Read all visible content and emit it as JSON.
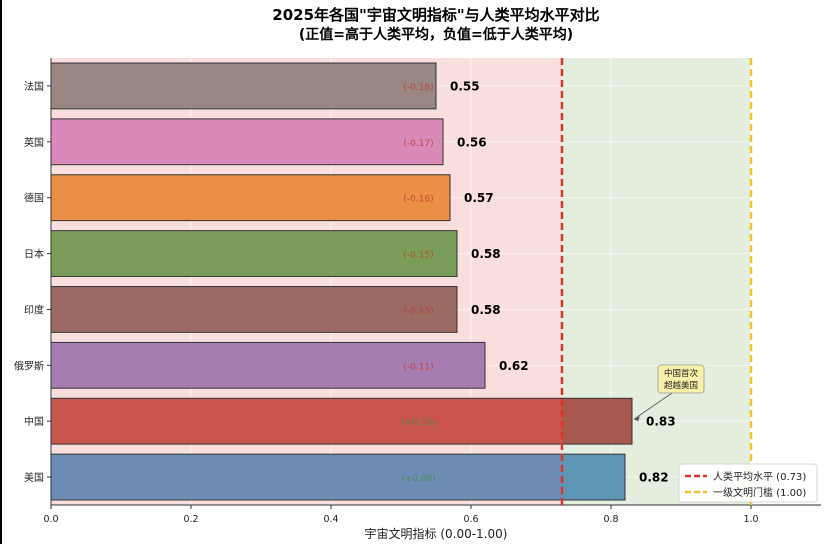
{
  "chart_data": {
    "type": "bar",
    "orientation": "horizontal",
    "title": "2025年各国\"宇宙文明指标\"与人类平均水平对比",
    "subtitle": "(正值=高于人类平均，负值=低于人类平均)",
    "xlabel": "宇宙文明指标 (0.00-1.00)",
    "ylabel": "",
    "xlim": [
      0,
      1.1
    ],
    "xticks": [
      "0.0",
      "0.2",
      "0.4",
      "0.6",
      "0.8",
      "1.0"
    ],
    "xtick_values": [
      0,
      0.2,
      0.4,
      0.6,
      0.8,
      1.0
    ],
    "grid": "x",
    "legend_position": "bottom-right",
    "categories": [
      "法国",
      "英国",
      "德国",
      "日本",
      "印度",
      "俄罗斯",
      "中国",
      "美国"
    ],
    "values": [
      0.55,
      0.56,
      0.57,
      0.58,
      0.58,
      0.62,
      0.83,
      0.82
    ],
    "value_labels": [
      "0.55",
      "0.56",
      "0.57",
      "0.58",
      "0.58",
      "0.62",
      "0.83",
      "0.82"
    ],
    "diff_values": [
      -0.18,
      -0.17,
      -0.16,
      -0.15,
      -0.15,
      -0.11,
      0.1,
      0.09
    ],
    "diff_labels": [
      "(-0.18)",
      "(-0.17)",
      "(-0.16)",
      "(-0.15)",
      "(-0.15)",
      "(-0.11)",
      "(+0.10)",
      "(+0.09)"
    ],
    "bar_colors": [
      "#9a8683",
      "#d98ab9",
      "#e99046",
      "#7a9e5a",
      "#9a6a63",
      "#a57db0",
      "#c8554e",
      "#6d8cb4"
    ],
    "bar_colors_above_avg": [
      "",
      "",
      "",
      "",
      "",
      "",
      "#a7594d",
      "#5f96b4"
    ],
    "reference_lines": [
      {
        "name": "人类平均水平 (0.73)",
        "value": 0.73,
        "color": "#d9352a",
        "style": "dashed"
      },
      {
        "name": "一级文明门槛 (1.00)",
        "value": 1.0,
        "color": "#f2c230",
        "style": "dashed"
      }
    ],
    "shaded_regions": [
      {
        "from": 0,
        "to": 0.73,
        "color": "#f8dedd"
      },
      {
        "from": 0.73,
        "to": 1.0,
        "color": "#e4eedf"
      }
    ],
    "annotation": {
      "text_lines": [
        "中国首次",
        "超越美国"
      ],
      "target_category": "中国",
      "target_value": 0.83
    }
  }
}
